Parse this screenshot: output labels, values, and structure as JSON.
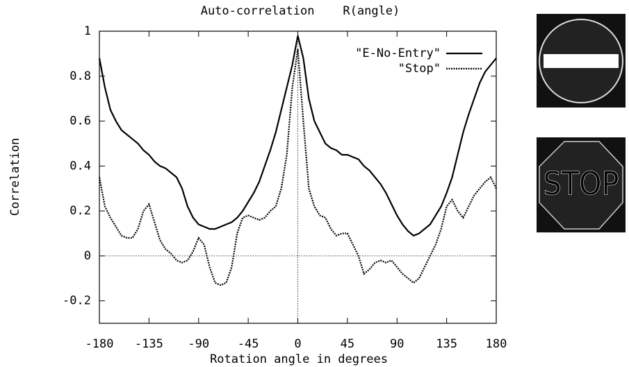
{
  "chart_data": {
    "type": "line",
    "title": "Auto-correlation    R(angle)",
    "x_label": "Rotation angle in degrees",
    "y_label": "Correlation",
    "x": [
      -180,
      -175,
      -170,
      -165,
      -160,
      -155,
      -150,
      -145,
      -140,
      -135,
      -130,
      -125,
      -120,
      -115,
      -110,
      -105,
      -100,
      -95,
      -90,
      -85,
      -80,
      -75,
      -70,
      -65,
      -60,
      -55,
      -50,
      -45,
      -40,
      -35,
      -30,
      -25,
      -20,
      -15,
      -10,
      -5,
      0,
      5,
      10,
      15,
      20,
      25,
      30,
      35,
      40,
      45,
      50,
      55,
      60,
      65,
      70,
      75,
      80,
      85,
      90,
      95,
      100,
      105,
      110,
      115,
      120,
      125,
      130,
      135,
      140,
      145,
      150,
      155,
      160,
      165,
      170,
      175,
      180
    ],
    "series": [
      {
        "name": "\"E-No-Entry\"",
        "color": "#000000",
        "dash": "solid",
        "values": [
          0.88,
          0.75,
          0.65,
          0.6,
          0.56,
          0.54,
          0.52,
          0.5,
          0.47,
          0.45,
          0.42,
          0.4,
          0.39,
          0.37,
          0.35,
          0.3,
          0.22,
          0.17,
          0.14,
          0.13,
          0.12,
          0.12,
          0.13,
          0.14,
          0.15,
          0.17,
          0.2,
          0.24,
          0.28,
          0.33,
          0.4,
          0.47,
          0.55,
          0.65,
          0.75,
          0.85,
          0.98,
          0.88,
          0.7,
          0.6,
          0.55,
          0.5,
          0.48,
          0.47,
          0.45,
          0.45,
          0.44,
          0.43,
          0.4,
          0.38,
          0.35,
          0.32,
          0.28,
          0.23,
          0.18,
          0.14,
          0.11,
          0.09,
          0.1,
          0.12,
          0.14,
          0.18,
          0.22,
          0.28,
          0.35,
          0.45,
          0.55,
          0.63,
          0.7,
          0.77,
          0.82,
          0.85,
          0.88
        ]
      },
      {
        "name": "\"Stop\"",
        "color": "#000000",
        "dash": "dotted",
        "values": [
          0.35,
          0.22,
          0.17,
          0.13,
          0.09,
          0.08,
          0.08,
          0.12,
          0.2,
          0.23,
          0.15,
          0.07,
          0.03,
          0.01,
          -0.02,
          -0.03,
          -0.02,
          0.02,
          0.08,
          0.05,
          -0.05,
          -0.12,
          -0.13,
          -0.12,
          -0.05,
          0.1,
          0.17,
          0.18,
          0.17,
          0.16,
          0.17,
          0.2,
          0.22,
          0.3,
          0.45,
          0.75,
          0.92,
          0.6,
          0.3,
          0.22,
          0.18,
          0.17,
          0.12,
          0.09,
          0.1,
          0.1,
          0.05,
          0.0,
          -0.08,
          -0.06,
          -0.03,
          -0.02,
          -0.03,
          -0.02,
          -0.05,
          -0.08,
          -0.1,
          -0.12,
          -0.1,
          -0.05,
          0.0,
          0.05,
          0.12,
          0.22,
          0.25,
          0.2,
          0.17,
          0.22,
          0.27,
          0.3,
          0.33,
          0.35,
          0.3
        ]
      }
    ],
    "xlim": [
      -180,
      180
    ],
    "xticks": [
      -180,
      -135,
      -90,
      -45,
      0,
      45,
      90,
      135,
      180
    ],
    "ylim": [
      -0.3,
      1
    ],
    "yticks": [
      -0.2,
      0,
      0.2,
      0.4,
      0.6,
      0.8,
      1
    ],
    "zero_axes": true,
    "legend": "top-right"
  },
  "images": {
    "stop_sign_text": "STOP"
  }
}
